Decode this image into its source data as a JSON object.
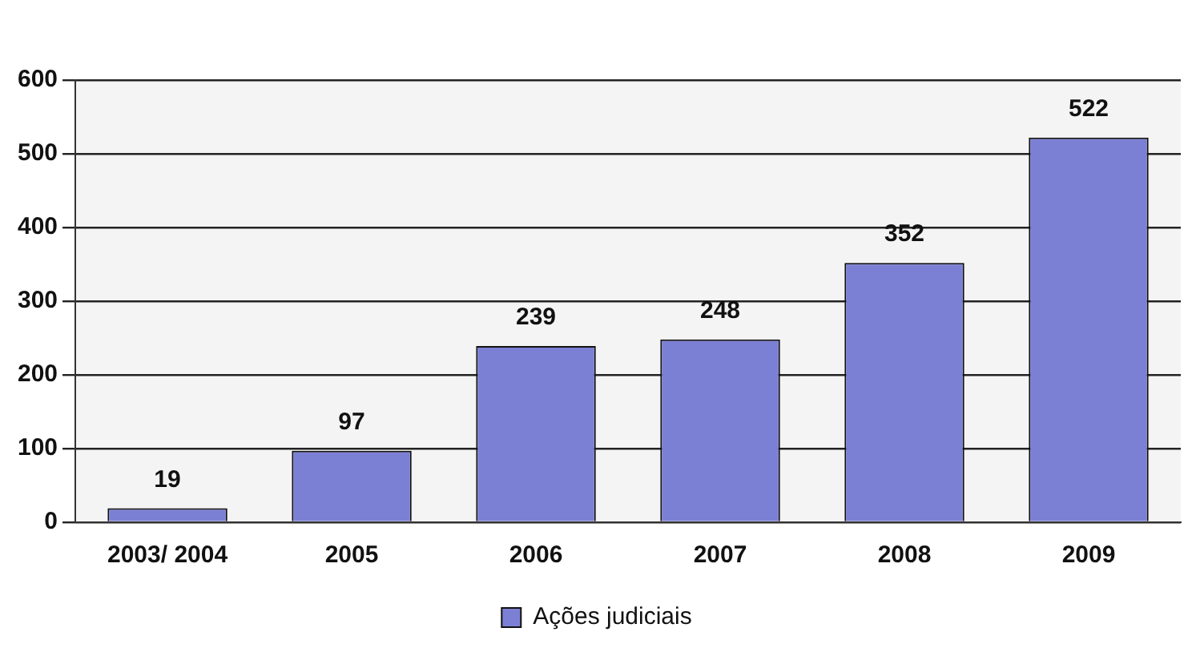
{
  "chart_data": {
    "type": "bar",
    "categories": [
      "2003/ 2004",
      "2005",
      "2006",
      "2007",
      "2008",
      "2009"
    ],
    "series": [
      {
        "name": "Ações judiciais",
        "color": "#7c80d4",
        "values": [
          19,
          97,
          239,
          248,
          352,
          522
        ]
      }
    ],
    "ylim": [
      0,
      600
    ],
    "yticks": [
      0,
      100,
      200,
      300,
      400,
      500,
      600
    ],
    "grid": "y",
    "legend": "bottom",
    "data_labels": true
  }
}
